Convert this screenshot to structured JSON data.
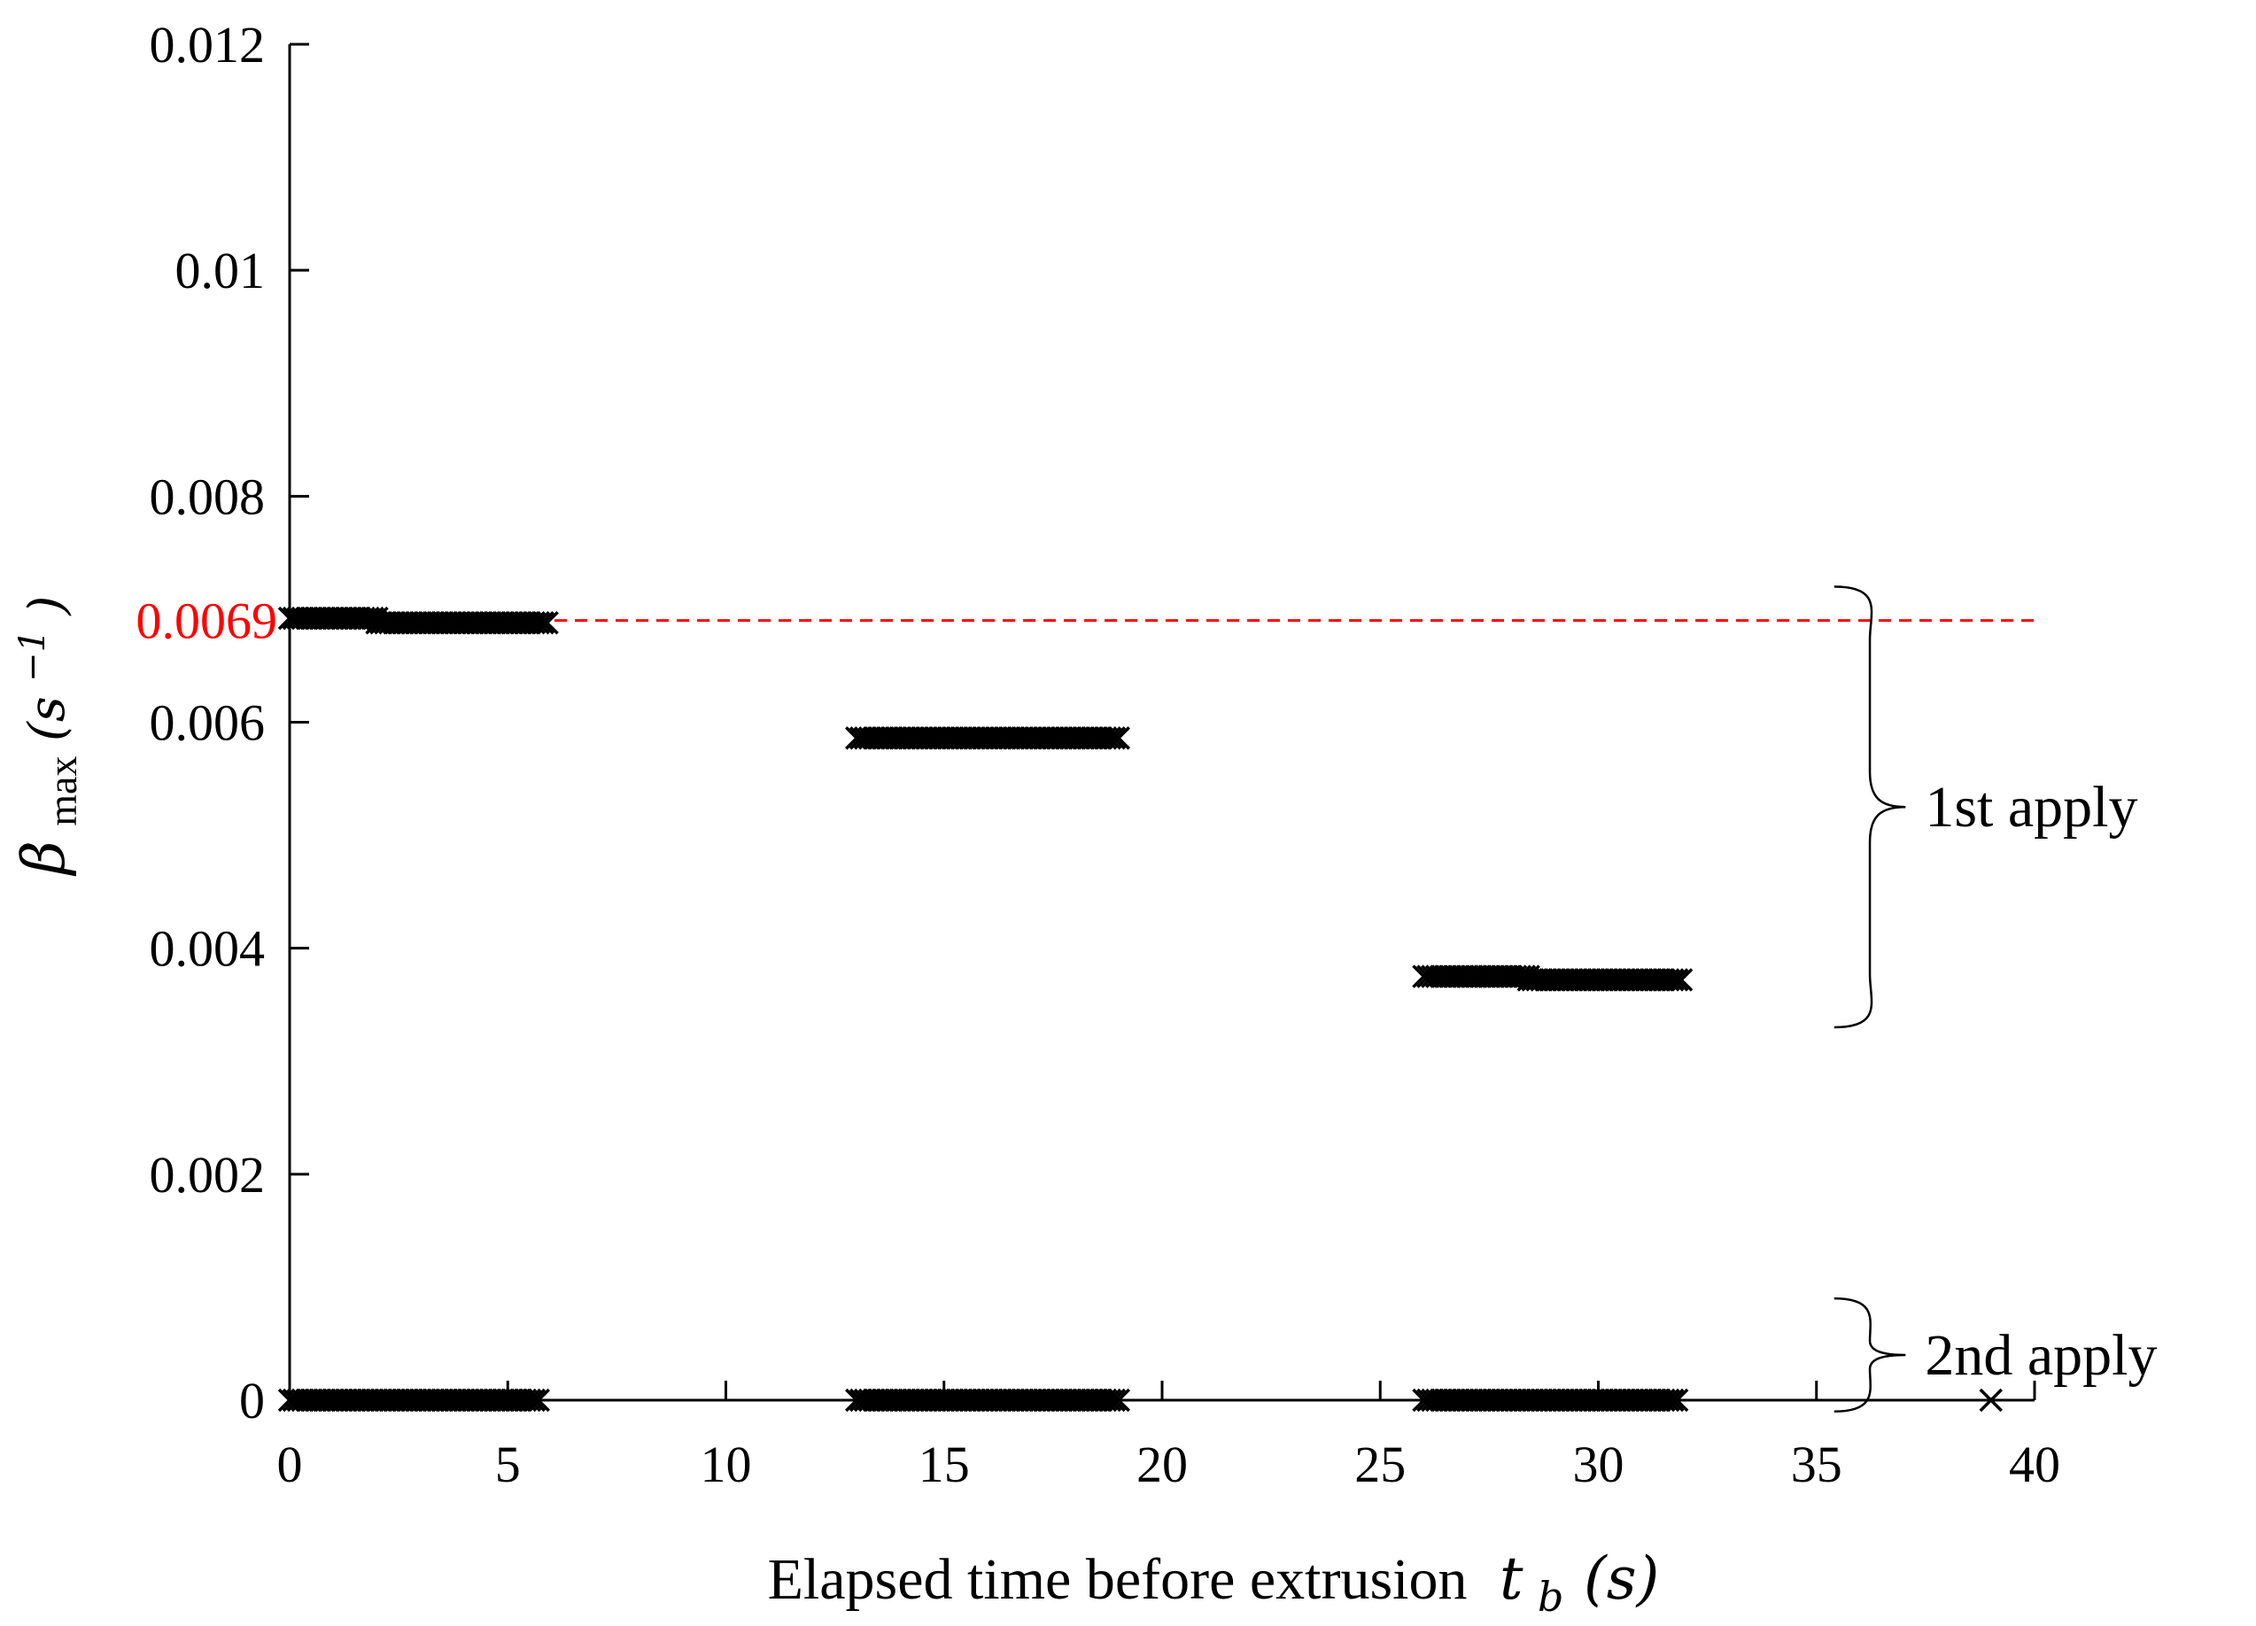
{
  "chart_data": {
    "type": "scatter",
    "title": "",
    "xlabel": "Elapsed time before extrusion",
    "xlabel_math": "t",
    "xlabel_math_sub": "b",
    "xlabel_unit": "(s)",
    "ylabel_symbol": "β",
    "ylabel_sub": "max",
    "ylabel_unit": "(s",
    "ylabel_unit_exp": "−1",
    "ylabel_unit_close": ")",
    "xlim": [
      0,
      40
    ],
    "ylim": [
      0,
      0.012
    ],
    "x_ticks": [
      0,
      5,
      10,
      15,
      20,
      25,
      30,
      35,
      40
    ],
    "x_tick_labels": [
      "0",
      "5",
      "10",
      "15",
      "20",
      "25",
      "30",
      "35",
      "40"
    ],
    "y_ticks": [
      0,
      0.002,
      0.004,
      0.006,
      0.008,
      0.01,
      0.012
    ],
    "y_tick_labels": [
      "0",
      "0.002",
      "0.004",
      "0.006",
      "0.008",
      "0.01",
      "0.012"
    ],
    "grid": false,
    "marker": "x",
    "reference_line": {
      "y": 0.0069,
      "label": "0.0069",
      "color": "#ff0000",
      "style": "dashed"
    },
    "series": [
      {
        "segments": [
          {
            "x_start": 0.0,
            "x_end": 2.0,
            "y": 0.00692,
            "step": 0.1
          },
          {
            "x_start": 2.0,
            "x_end": 5.9,
            "y": 0.00688,
            "step": 0.1
          },
          {
            "x_start": 13.0,
            "x_end": 19.0,
            "y": 0.00586,
            "step": 0.1
          },
          {
            "x_start": 26.0,
            "x_end": 28.4,
            "y": 0.00375,
            "step": 0.1
          },
          {
            "x_start": 28.4,
            "x_end": 31.9,
            "y": 0.00372,
            "step": 0.1
          }
        ]
      },
      {
        "segments": [
          {
            "x_start": 0.0,
            "x_end": 5.7,
            "y": 0.0,
            "step": 0.1
          },
          {
            "x_start": 13.0,
            "x_end": 19.0,
            "y": 0.0,
            "step": 0.1
          },
          {
            "x_start": 26.0,
            "x_end": 31.8,
            "y": 0.0,
            "step": 0.1
          },
          {
            "x_start": 39.0,
            "x_end": 39.0,
            "y": 0.0,
            "step": 0.1
          }
        ]
      }
    ],
    "annotations": [
      {
        "text": "1st apply",
        "y_top": 0.0072,
        "y_bottom": 0.0033,
        "x": 35.0
      },
      {
        "text": "2nd apply",
        "y_top": 0.0009,
        "y_bottom": -0.0001,
        "x": 35.0
      }
    ],
    "colors": {
      "marker": "#000000",
      "axis": "#000000",
      "reference": "#ff0000"
    }
  }
}
